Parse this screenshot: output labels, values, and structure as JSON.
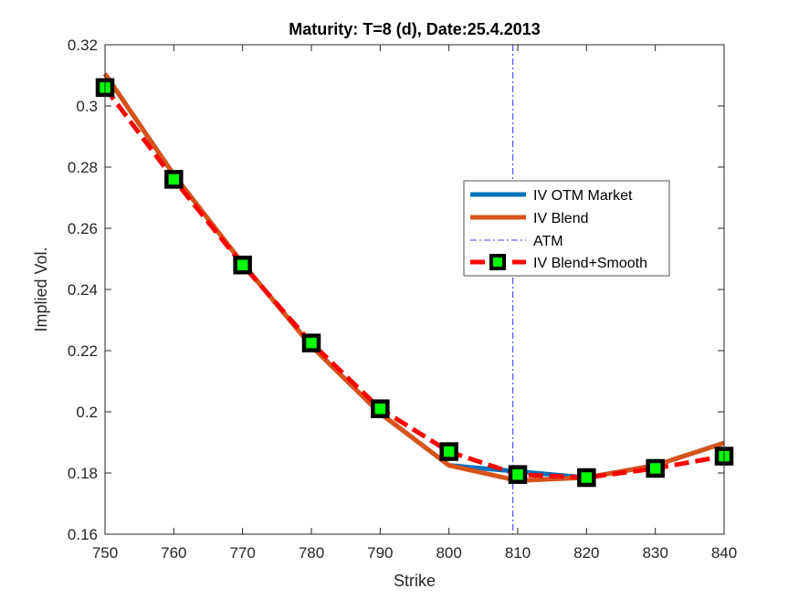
{
  "chart_data": {
    "type": "line",
    "title": "Maturity: T=8 (d), Date:25.4.2013",
    "xlabel": "Strike",
    "ylabel": "Implied Vol.",
    "xlim": [
      750,
      840
    ],
    "ylim": [
      0.16,
      0.32
    ],
    "x_ticks": [
      "750",
      "760",
      "770",
      "780",
      "790",
      "800",
      "810",
      "820",
      "830",
      "840"
    ],
    "y_ticks": [
      "0.16",
      "0.18",
      "0.2",
      "0.22",
      "0.24",
      "0.26",
      "0.28",
      "0.3",
      "0.32"
    ],
    "grid": false,
    "legend_position": "right",
    "atm_strike": 809.3,
    "series": [
      {
        "name": "IV OTM Market",
        "color": "#0072BD",
        "style": "solid",
        "x": [
          750,
          760,
          770,
          780,
          790,
          800,
          810,
          820,
          830,
          840
        ],
        "y": [
          0.3105,
          0.2775,
          0.2485,
          0.2215,
          0.1995,
          0.1825,
          0.1805,
          0.1785,
          0.1825,
          0.1898
        ]
      },
      {
        "name": "IV Blend",
        "color": "#D95319",
        "style": "solid",
        "x": [
          750,
          760,
          770,
          780,
          790,
          800,
          810,
          820,
          830,
          840
        ],
        "y": [
          0.3105,
          0.2775,
          0.2485,
          0.2215,
          0.1995,
          0.1825,
          0.1775,
          0.1785,
          0.1825,
          0.1898
        ]
      },
      {
        "name": "ATM",
        "color": "#0000FF",
        "style": "dash-dot"
      },
      {
        "name": "IV Blend+Smooth",
        "color": "#FF0000",
        "style": "dashed",
        "marker_color": "#00FF00",
        "marker_edge": "#000000",
        "x": [
          750,
          760,
          770,
          780,
          790,
          800,
          810,
          820,
          830,
          840
        ],
        "y": [
          0.306,
          0.276,
          0.248,
          0.2225,
          0.201,
          0.187,
          0.1795,
          0.1785,
          0.1815,
          0.1855
        ]
      }
    ]
  }
}
